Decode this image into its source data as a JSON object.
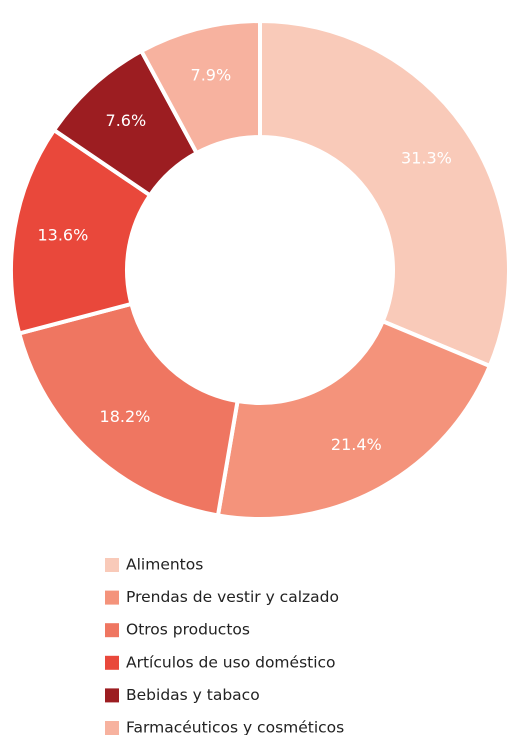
{
  "chart_data": {
    "type": "donut",
    "categories": [
      "Alimentos",
      "Prendas de vestir y calzado",
      "Otros productos",
      "Artículos de uso doméstico",
      "Bebidas y tabaco",
      "Farmacéuticos y cosméticos"
    ],
    "values": [
      31.3,
      21.4,
      18.2,
      13.6,
      7.6,
      7.9
    ],
    "value_labels": [
      "31.3%",
      "21.4%",
      "18.2%",
      "13.6%",
      "7.6%",
      "7.9%"
    ],
    "colors": [
      "#f9cab9",
      "#f4937b",
      "#ef7661",
      "#e9483b",
      "#9c1d21",
      "#f7b29f"
    ]
  }
}
